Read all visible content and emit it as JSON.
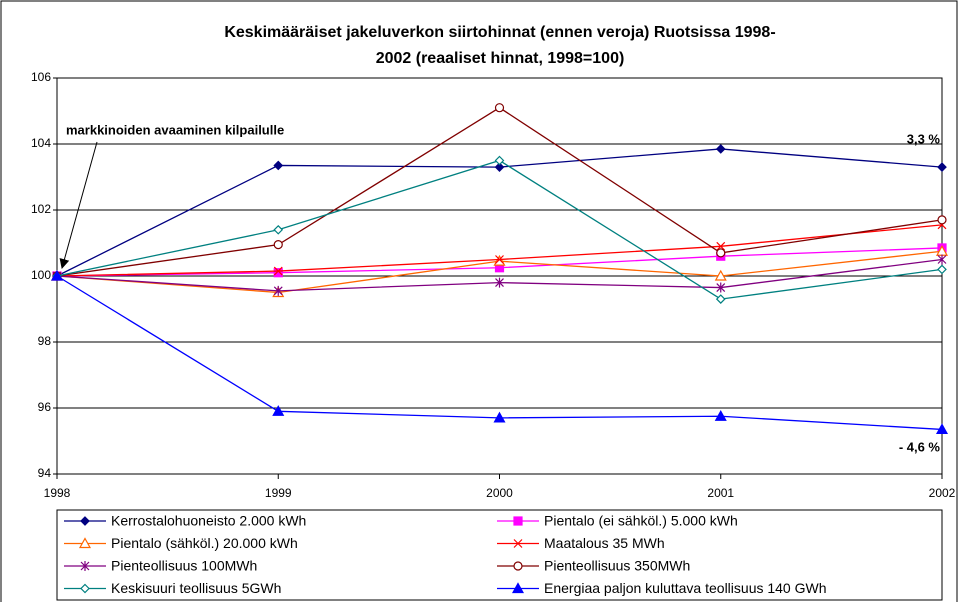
{
  "chart_data": {
    "type": "line",
    "title": [
      "Keskimääräiset jakeluverkon siirtohinnat (ennen veroja) Ruotsissa 1998-",
      "2002 (reaaliset hinnat, 1998=100)"
    ],
    "x": [
      1998,
      1999,
      2000,
      2001,
      2002
    ],
    "xlim": [
      1998,
      2002
    ],
    "xticks": [
      1998,
      1999,
      2000,
      2001,
      2002
    ],
    "ylim": [
      94,
      106
    ],
    "yticks": [
      94,
      96,
      98,
      100,
      102,
      104,
      106
    ],
    "grid": true,
    "annotations": [
      "markkinoiden avaaminen kilpailulle",
      "3,3 %",
      "- 4,6 %"
    ],
    "series": [
      {
        "name": "Kerrostalohuoneisto 2.000 kWh",
        "color": "#000080",
        "marker": "diamond",
        "values": [
          100,
          103.35,
          103.3,
          103.85,
          103.3
        ]
      },
      {
        "name": "Pientalo (ei sähköl.) 5.000 kWh",
        "color": "#ff00ff",
        "marker": "square",
        "values": [
          100,
          100.1,
          100.25,
          100.6,
          100.85
        ]
      },
      {
        "name": "Pientalo (sähköl.) 20.000 kWh",
        "color": "#ff6600",
        "marker": "triangle-open",
        "values": [
          100,
          99.5,
          100.45,
          100,
          100.75
        ]
      },
      {
        "name": "Maatalous 35 MWh",
        "color": "#ff0000",
        "marker": "x",
        "values": [
          100,
          100.15,
          100.5,
          100.9,
          101.55
        ]
      },
      {
        "name": "Pienteollisuus 100MWh",
        "color": "#800080",
        "marker": "star",
        "values": [
          100,
          99.55,
          99.8,
          99.65,
          100.5
        ]
      },
      {
        "name": "Pienteollisuus 350MWh",
        "color": "#800000",
        "marker": "circle-open",
        "values": [
          100,
          100.95,
          105.1,
          100.7,
          101.7
        ]
      },
      {
        "name": "Keskisuuri teollisuus 5GWh",
        "color": "#008080",
        "marker": "diamond-open",
        "values": [
          100,
          101.4,
          103.5,
          99.3,
          100.2
        ]
      },
      {
        "name": "Energiaa paljon kuluttava teollisuus 140 GWh",
        "color": "#0000ff",
        "marker": "triangle",
        "values": [
          100,
          95.9,
          95.7,
          95.75,
          95.35
        ]
      }
    ]
  }
}
